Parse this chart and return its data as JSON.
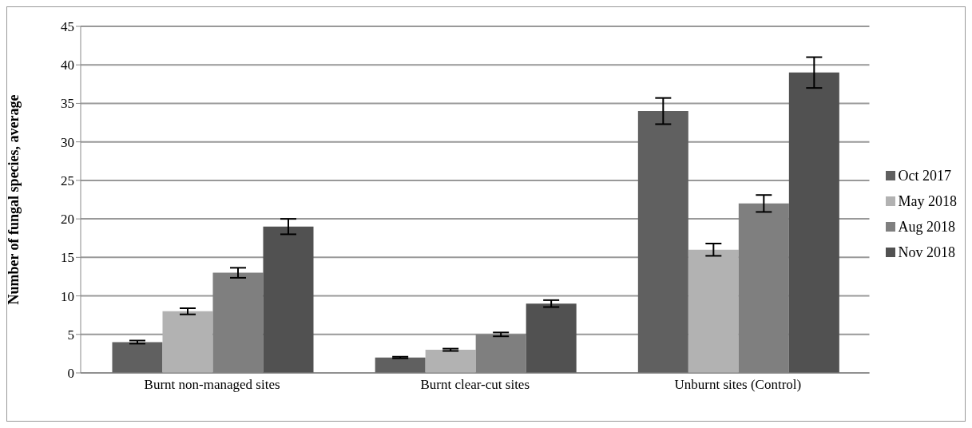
{
  "chart_data": {
    "type": "bar",
    "ylabel": "Number of fungal species, average",
    "categories": [
      "Burnt non-managed sites",
      "Burnt clear-cut sites",
      "Unburnt sites (Control)"
    ],
    "series": [
      {
        "name": "Oct 2017",
        "color": "#606060",
        "values": [
          4,
          2,
          34
        ],
        "errors": [
          0.2,
          0.1,
          1.7
        ]
      },
      {
        "name": "May 2018",
        "color": "#b2b2b2",
        "values": [
          8,
          3,
          16
        ],
        "errors": [
          0.4,
          0.15,
          0.8
        ]
      },
      {
        "name": "Aug 2018",
        "color": "#7f7f7f",
        "values": [
          13,
          5,
          22
        ],
        "errors": [
          0.65,
          0.25,
          1.1
        ]
      },
      {
        "name": "Nov 2018",
        "color": "#515151",
        "values": [
          19,
          9,
          39
        ],
        "errors": [
          1,
          0.45,
          2
        ]
      }
    ],
    "ylim": [
      0,
      45
    ],
    "yticks": [
      0,
      5,
      10,
      15,
      20,
      25,
      30,
      35,
      40,
      45
    ],
    "grid": "y",
    "legend": "right"
  }
}
